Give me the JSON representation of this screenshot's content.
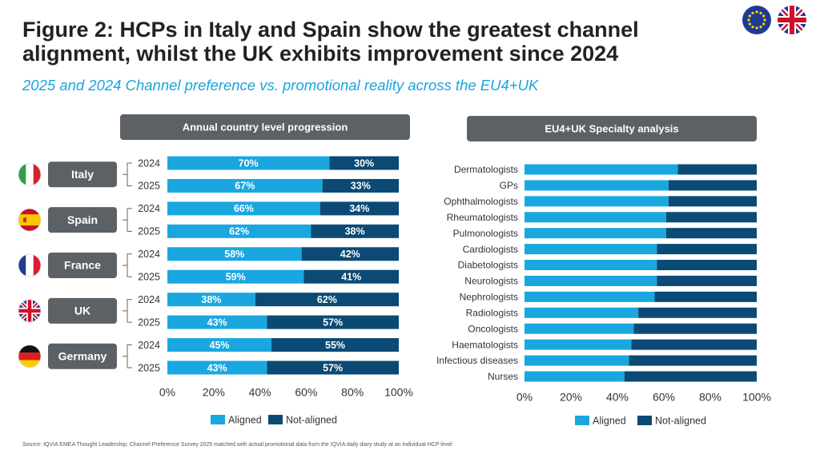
{
  "title": "Figure 2: HCPs in Italy and Spain show the greatest channel alignment, whilst the UK exhibits improvement since 2024",
  "subtitle": "2025 and 2024 Channel preference vs. promotional reality across the EU4+UK",
  "source": "Source: IQVIA EMEA Thought Leadership; Channel Preference Survey 2025 matched with actual promotional data from the IQVIA daily diary study at an individual HCP level",
  "chart_data": [
    {
      "type": "bar",
      "orientation": "horizontal",
      "stacked": true,
      "title": "Annual country level progression",
      "groups": [
        "Italy",
        "Spain",
        "France",
        "UK",
        "Germany"
      ],
      "categories": [
        "2024",
        "2025",
        "2024",
        "2025",
        "2024",
        "2025",
        "2024",
        "2025",
        "2024",
        "2025"
      ],
      "series": [
        {
          "name": "Aligned",
          "color": "#1aa7e0",
          "values": [
            70,
            67,
            66,
            62,
            58,
            59,
            38,
            43,
            45,
            43
          ],
          "value_labels": [
            "70%",
            "67%",
            "66%",
            "62%",
            "58%",
            "59%",
            "38%",
            "43%",
            "45%",
            "43%"
          ]
        },
        {
          "name": "Not-aligned",
          "color": "#0b4a74",
          "values": [
            30,
            33,
            34,
            38,
            42,
            41,
            62,
            57,
            55,
            57
          ],
          "value_labels": [
            "30%",
            "33%",
            "34%",
            "38%",
            "42%",
            "41%",
            "62%",
            "57%",
            "55%",
            "57%"
          ]
        }
      ],
      "xlim": [
        0,
        100
      ],
      "xticks": [
        {
          "value": 0,
          "label": "0%"
        },
        {
          "value": 20,
          "label": "20%"
        },
        {
          "value": 40,
          "label": "40%"
        },
        {
          "value": 60,
          "label": "60%"
        },
        {
          "value": 80,
          "label": "80%"
        },
        {
          "value": 100,
          "label": "100%"
        }
      ],
      "legend": "bottom"
    },
    {
      "type": "bar",
      "orientation": "horizontal",
      "stacked": true,
      "title": "EU4+UK Specialty analysis",
      "categories": [
        "Dermatologists",
        "GPs",
        "Ophthalmologists",
        "Rheumatologists",
        "Pulmonologists",
        "Cardiologists",
        "Diabetologists",
        "Neurologists",
        "Nephrologists",
        "Radiologists",
        "Oncologists",
        "Haematologists",
        "Infectious diseases",
        "Nurses"
      ],
      "series": [
        {
          "name": "Aligned",
          "color": "#1aa7e0",
          "values": [
            66,
            62,
            62,
            61,
            61,
            57,
            57,
            57,
            56,
            49,
            47,
            46,
            45,
            43
          ]
        },
        {
          "name": "Not-aligned",
          "color": "#0b4a74",
          "values": [
            34,
            38,
            38,
            39,
            39,
            43,
            43,
            43,
            44,
            51,
            53,
            54,
            55,
            57
          ]
        }
      ],
      "xlim": [
        0,
        100
      ],
      "xticks": [
        {
          "value": 0,
          "label": "0%"
        },
        {
          "value": 20,
          "label": "20%"
        },
        {
          "value": 40,
          "label": "40%"
        },
        {
          "value": 60,
          "label": "60%"
        },
        {
          "value": 80,
          "label": "80%"
        },
        {
          "value": 100,
          "label": "100%"
        }
      ],
      "legend": "bottom"
    }
  ]
}
